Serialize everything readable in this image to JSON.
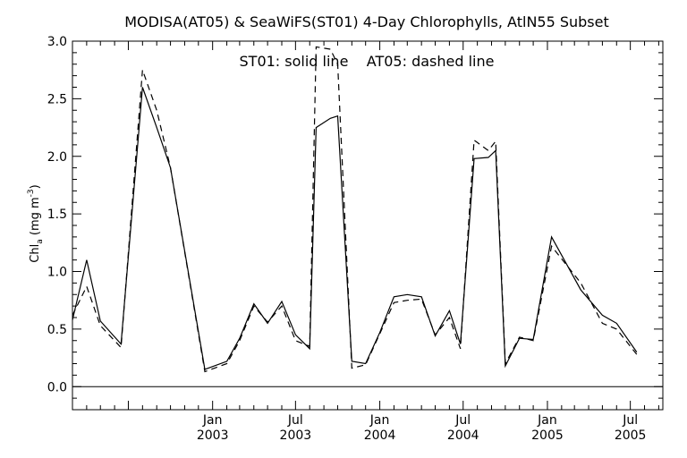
{
  "chart_data": {
    "type": "line",
    "title": "MODISA(AT05) & SeaWiFS(ST01) 4-Day Chlorophylls, AtlN55 Subset",
    "annotation": "ST01: solid line    AT05: dashed line",
    "ylabel": "Chl",
    "ylabel_sub": "a",
    "ylabel_unit": "(mg m",
    "ylabel_unit_exp": "-3",
    "ylabel_unit_close": ")",
    "xlabel": "",
    "ylim": [
      -0.2,
      3.0
    ],
    "xlim": [
      "2002-03-01",
      "2005-09-10"
    ],
    "y_ticks": [
      "0.0",
      "0.5",
      "1.0",
      "1.5",
      "2.0",
      "2.5",
      "3.0"
    ],
    "x_tick_labels": [
      {
        "date": "2003-01-01",
        "month": "Jan",
        "year": "2003"
      },
      {
        "date": "2003-07-01",
        "month": "Jul",
        "year": "2003"
      },
      {
        "date": "2004-01-01",
        "month": "Jan",
        "year": "2004"
      },
      {
        "date": "2004-07-01",
        "month": "Jul",
        "year": "2004"
      },
      {
        "date": "2005-01-01",
        "month": "Jan",
        "year": "2005"
      },
      {
        "date": "2005-07-01",
        "month": "Jul",
        "year": "2005"
      }
    ],
    "reference_line": 0.0,
    "grid": false,
    "series": [
      {
        "name": "ST01",
        "style": "solid",
        "points": [
          [
            "2002-03-01",
            0.58
          ],
          [
            "2002-04-01",
            1.1
          ],
          [
            "2002-05-01",
            0.57
          ],
          [
            "2002-06-15",
            0.37
          ],
          [
            "2002-08-01",
            2.6
          ],
          [
            "2002-09-01",
            2.25
          ],
          [
            "2002-10-01",
            1.9
          ],
          [
            "2002-12-15",
            0.15
          ],
          [
            "2003-02-01",
            0.22
          ],
          [
            "2003-03-01",
            0.42
          ],
          [
            "2003-04-01",
            0.72
          ],
          [
            "2003-05-01",
            0.55
          ],
          [
            "2003-06-01",
            0.74
          ],
          [
            "2003-07-01",
            0.45
          ],
          [
            "2003-08-01",
            0.33
          ],
          [
            "2003-08-15",
            2.25
          ],
          [
            "2003-09-15",
            2.33
          ],
          [
            "2003-10-01",
            2.35
          ],
          [
            "2003-11-01",
            0.22
          ],
          [
            "2003-12-01",
            0.2
          ],
          [
            "2004-01-01",
            0.47
          ],
          [
            "2004-02-01",
            0.78
          ],
          [
            "2004-03-01",
            0.8
          ],
          [
            "2004-04-01",
            0.78
          ],
          [
            "2004-05-01",
            0.44
          ],
          [
            "2004-06-01",
            0.66
          ],
          [
            "2004-06-25",
            0.37
          ],
          [
            "2004-07-25",
            1.98
          ],
          [
            "2004-08-25",
            1.99
          ],
          [
            "2004-09-10",
            2.05
          ],
          [
            "2004-10-01",
            0.18
          ],
          [
            "2004-11-01",
            0.42
          ],
          [
            "2004-12-01",
            0.41
          ],
          [
            "2005-01-10",
            1.3
          ],
          [
            "2005-03-15",
            0.84
          ],
          [
            "2005-05-01",
            0.62
          ],
          [
            "2005-06-01",
            0.55
          ],
          [
            "2005-07-15",
            0.3
          ]
        ]
      },
      {
        "name": "AT05",
        "style": "dashed",
        "points": [
          [
            "2002-03-01",
            0.62
          ],
          [
            "2002-04-01",
            0.87
          ],
          [
            "2002-05-01",
            0.53
          ],
          [
            "2002-06-15",
            0.34
          ],
          [
            "2002-08-01",
            2.75
          ],
          [
            "2002-09-01",
            2.4
          ],
          [
            "2002-10-01",
            1.9
          ],
          [
            "2002-12-15",
            0.13
          ],
          [
            "2003-02-01",
            0.2
          ],
          [
            "2003-03-01",
            0.4
          ],
          [
            "2003-04-01",
            0.7
          ],
          [
            "2003-05-01",
            0.56
          ],
          [
            "2003-06-01",
            0.7
          ],
          [
            "2003-07-01",
            0.4
          ],
          [
            "2003-08-01",
            0.35
          ],
          [
            "2003-08-15",
            2.95
          ],
          [
            "2003-09-15",
            2.93
          ],
          [
            "2003-10-01",
            2.8
          ],
          [
            "2003-11-01",
            0.16
          ],
          [
            "2003-12-01",
            0.19
          ],
          [
            "2004-01-01",
            0.46
          ],
          [
            "2004-02-01",
            0.73
          ],
          [
            "2004-03-01",
            0.75
          ],
          [
            "2004-04-01",
            0.76
          ],
          [
            "2004-05-01",
            0.45
          ],
          [
            "2004-06-01",
            0.6
          ],
          [
            "2004-06-25",
            0.33
          ],
          [
            "2004-07-25",
            2.14
          ],
          [
            "2004-08-25",
            2.05
          ],
          [
            "2004-09-10",
            2.13
          ],
          [
            "2004-10-01",
            0.2
          ],
          [
            "2004-11-01",
            0.43
          ],
          [
            "2004-12-01",
            0.4
          ],
          [
            "2005-01-10",
            1.22
          ],
          [
            "2005-03-15",
            0.9
          ],
          [
            "2005-05-01",
            0.55
          ],
          [
            "2005-06-01",
            0.5
          ],
          [
            "2005-07-15",
            0.28
          ]
        ]
      }
    ]
  }
}
